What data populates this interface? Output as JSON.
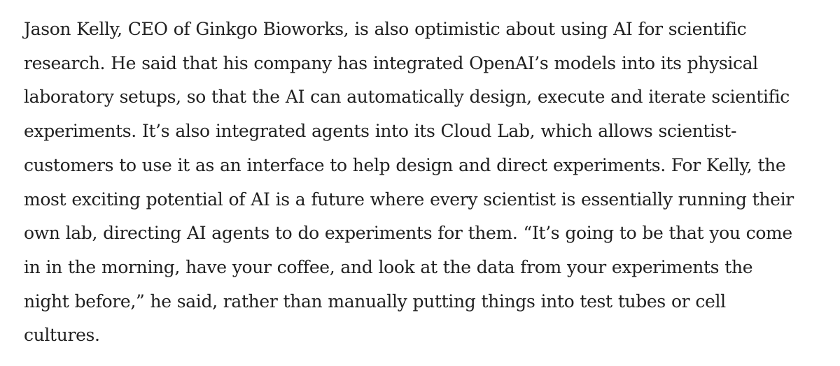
{
  "article": {
    "paragraph_lines": [
      "Jason Kelly, CEO of Ginkgo Bioworks, is also optimistic about using AI for scientific",
      "research. He said that his company has integrated OpenAI’s models into its physical",
      "laboratory setups, so that the AI can automatically design, execute and iterate scientific",
      "experiments. It’s also integrated agents into its Cloud Lab, which allows scientist-",
      "customers to use it as an interface to help design and direct experiments. For Kelly, the",
      "most exciting potential of AI is a future where every scientist is essentially running their",
      "own lab, directing AI agents to do experiments for them. “It’s going to be that you come",
      "in in the morning, have your coffee, and look at the data from your experiments the",
      "night before,” he said, rather than manually putting things into test tubes or cell",
      "cultures."
    ]
  }
}
